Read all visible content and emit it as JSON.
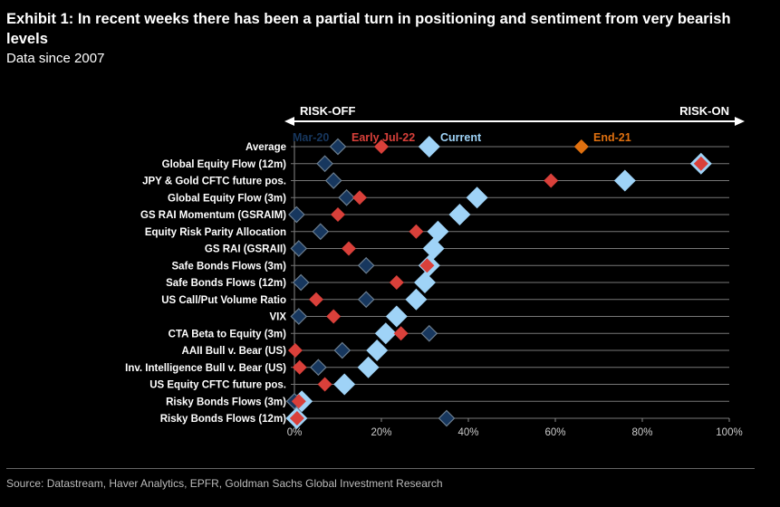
{
  "title": "Exhibit 1: In recent weeks there has been a partial turn in positioning and sentiment from very bearish levels",
  "subtitle": "Data since 2007",
  "source": "Source: Datastream, Haver Analytics, EPFR, Goldman Sachs Global Investment Research",
  "chart_data": {
    "type": "scatter",
    "arrow_left_label": "RISK-OFF",
    "arrow_right_label": "RISK-ON",
    "xlim": [
      0,
      100
    ],
    "x_ticks": [
      "0%",
      "20%",
      "40%",
      "60%",
      "80%",
      "100%"
    ],
    "x_tick_values": [
      0,
      20,
      40,
      60,
      80,
      100
    ],
    "grid": true,
    "categories": [
      "Average",
      "Global Equity Flow (12m)",
      "JPY & Gold CFTC future pos.",
      "Global Equity Flow (3m)",
      "GS RAI Momentum (GSRAIM)",
      "Equity Risk Parity Allocation",
      "GS RAI (GSRAII)",
      "Safe Bonds Flows (3m)",
      "Safe Bonds Flows (12m)",
      "US Call/Put Volume Ratio",
      "VIX",
      "CTA Beta to Equity (3m)",
      "AAII Bull v. Bear (US)",
      "Inv. Intelligence Bull v. Bear (US)",
      "US Equity CFTC future pos.",
      "Risky Bonds Flows (3m)",
      "Risky Bonds Flows (12m)"
    ],
    "series": [
      {
        "name": "Mar-20",
        "color": "#17375e",
        "values": [
          10,
          7,
          9,
          12,
          0.5,
          6,
          1,
          16.5,
          1.5,
          16.5,
          1,
          31,
          11,
          5.5,
          null,
          0,
          35
        ]
      },
      {
        "name": "Early Jul-22",
        "color": "#d9403a",
        "values": [
          20,
          93.5,
          59,
          15,
          10,
          28,
          12.5,
          30.5,
          23.5,
          5,
          9,
          24.5,
          0.2,
          1.2,
          7,
          1,
          0.6
        ]
      },
      {
        "name": "Current",
        "color": "#9fd3f7",
        "values": [
          31,
          93.5,
          76,
          42,
          38,
          33,
          32,
          31,
          30,
          28,
          23.5,
          21,
          19,
          17,
          11.5,
          1.7,
          0.5
        ]
      },
      {
        "name": "End-21",
        "color": "#e0700f",
        "values": [
          66,
          null,
          null,
          null,
          null,
          null,
          null,
          null,
          null,
          null,
          null,
          null,
          null,
          null,
          null,
          null,
          null
        ]
      }
    ],
    "legend_placement": "top, inline annotations"
  }
}
